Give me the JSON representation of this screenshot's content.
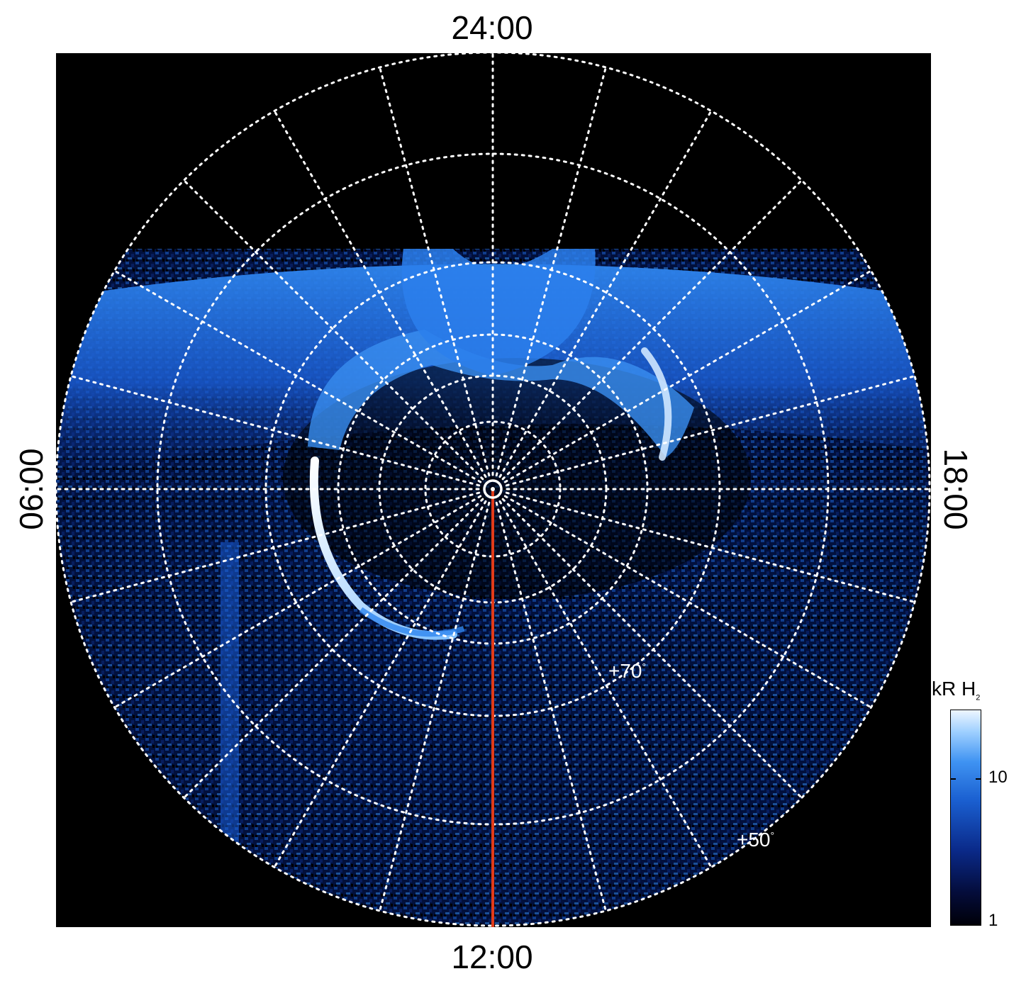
{
  "local_time_labels": {
    "top": "24:00",
    "bottom": "12:00",
    "left": "06:00",
    "right": "18:00"
  },
  "latitude_labels": {
    "lat_70": "+70",
    "lat_50": "+50",
    "degree_symbol": "°"
  },
  "colorbar": {
    "title": "kR H",
    "title_subscript": "2",
    "ticks": [
      "10",
      "1"
    ],
    "scale": "log"
  },
  "colors": {
    "background": "#000000",
    "grid": "#ffffff",
    "noon_meridian": "#e23b1a",
    "aurora_bright": "#eaf5ff",
    "aurora_mid": "#2f86ef",
    "aurora_dim": "#0b2f8f"
  },
  "image": {
    "projection": "polar",
    "latitude_circles_drawn": 6,
    "meridians_drawn": 24,
    "grid_style": "dotted"
  }
}
